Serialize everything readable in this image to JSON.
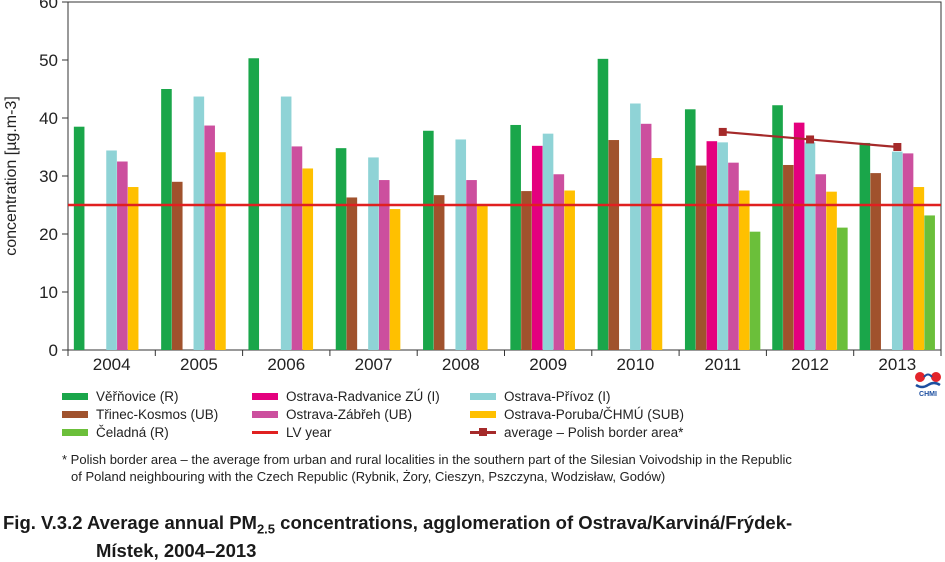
{
  "chart_data": {
    "type": "bar",
    "ylabel": "concentration [µg.m-3]",
    "ylim": [
      0,
      60
    ],
    "yticks": [
      0,
      10,
      20,
      30,
      40,
      50,
      60
    ],
    "categories": [
      "2004",
      "2005",
      "2006",
      "2007",
      "2008",
      "2009",
      "2010",
      "2011",
      "2012",
      "2013"
    ],
    "series": [
      {
        "name": "Věřňovice (R)",
        "color": "#1aa64a",
        "values": [
          38.5,
          45,
          50.3,
          34.8,
          37.8,
          38.8,
          50.2,
          41.5,
          42.2,
          35.7
        ]
      },
      {
        "name": "Třinec-Kosmos (UB)",
        "color": "#a0522d",
        "values": [
          null,
          29,
          null,
          26.3,
          26.7,
          27.4,
          36.2,
          31.8,
          31.9,
          30.5
        ]
      },
      {
        "name": "Ostrava-Radvanice ZÚ (I)",
        "color": "#e4007e",
        "values": [
          null,
          null,
          null,
          null,
          null,
          35.2,
          null,
          36,
          39.2,
          null
        ]
      },
      {
        "name": "Ostrava-Přívoz (I)",
        "color": "#8fd3d6",
        "values": [
          34.4,
          43.7,
          43.7,
          33.2,
          36.3,
          37.3,
          42.5,
          35.8,
          35.8,
          34.2
        ]
      },
      {
        "name": "Ostrava-Zábřeh (UB)",
        "color": "#cc4f9e",
        "values": [
          32.5,
          38.7,
          35.1,
          29.3,
          29.3,
          30.3,
          39,
          32.3,
          30.3,
          33.9
        ]
      },
      {
        "name": "Ostrava-Poruba/ČHMÚ (SUB)",
        "color": "#ffc000",
        "values": [
          28.1,
          34.1,
          31.3,
          24.3,
          25.1,
          27.5,
          33.1,
          27.5,
          27.3,
          28.1
        ]
      },
      {
        "name": "Čeladná (R)",
        "color": "#6bbf3a",
        "values": [
          null,
          null,
          null,
          null,
          null,
          null,
          null,
          20.4,
          21.1,
          23.2
        ]
      }
    ],
    "lines": [
      {
        "name": "LV year",
        "color": "#e02020",
        "type": "hline",
        "y": 25
      },
      {
        "name": "average – Polish border area*",
        "color": "#a52a2a",
        "type": "line",
        "x": [
          "2011",
          "2012",
          "2013"
        ],
        "values": [
          37.6,
          36.3,
          35
        ]
      }
    ],
    "grid": false,
    "legend_position": "bottom"
  },
  "legend": {
    "verinovice": "Věřňovice (R)",
    "radvanice": "Ostrava-Radvanice ZÚ (I)",
    "privoz": "Ostrava-Přívoz (I)",
    "trinec": "Třinec-Kosmos (UB)",
    "zabreh": "Ostrava-Zábřeh (UB)",
    "poruba": "Ostrava-Poruba/ČHMÚ (SUB)",
    "celadna": "Čeladná (R)",
    "lv": "LV year",
    "polish": "average – Polish border area*"
  },
  "footnote": {
    "line1": "* Polish border area – the average from urban and rural localities in the southern part of the Silesian Voivodship in the Republic",
    "line2": "of Poland neighbouring with the Czech Republic (Rybnik, Żory, Cieszyn, Pszczyna, Wodzisław, Godów)"
  },
  "caption": {
    "prefix": "Fig. V.3.2  Average annual PM",
    "subscript": "2.5",
    "rest": " concentrations, agglomeration of Ostrava/Karviná/Frýdek-",
    "line2": "Místek, 2004–2013"
  },
  "logo": {
    "text": "CHMI"
  }
}
